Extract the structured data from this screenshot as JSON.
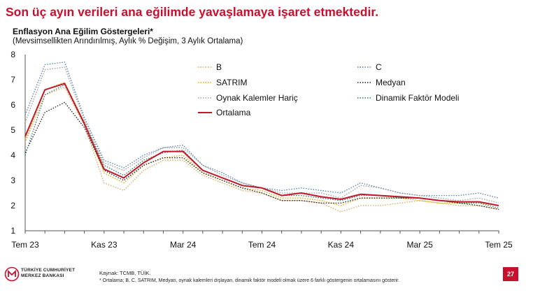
{
  "headline": "Son üç ayın verileri ana eğilimde yavaşlamaya işaret etmektedir.",
  "footer": {
    "bank_name_line1": "TÜRKİYE CUMHURİYET",
    "bank_name_line2": "MERKEZ BANKASI",
    "source": "Kaynak: TCMB, TÜİK.",
    "footnote": "* Ortalama; B, C, SATRIM, Medyan, oynak kalemleri dışlayan, dinamik faktör modeli olmak üzere 6 farklı göstergenin ortalamasını gösterir.",
    "page_number": "27"
  },
  "chart_data": {
    "type": "line",
    "title": "Enflasyon Ana Eğilim Göstergeleri*",
    "subtitle": "(Mevsimsellikten Arındırılmış, Aylık % Değişim, 3 Aylık Ortalama)",
    "x": [
      "Tem 23",
      "Ağu 23",
      "Eyl 23",
      "Eki 23",
      "Kas 23",
      "Ara 23",
      "Oca 24",
      "Şub 24",
      "Mar 24",
      "Nis 24",
      "May 24",
      "Haz 24",
      "Tem 24",
      "Ağu 24",
      "Eyl 24",
      "Eki 24",
      "Kas 24",
      "Ara 24",
      "Oca 25",
      "Şub 25",
      "Mar 25",
      "Nis 25",
      "May 25",
      "Haz 25",
      "Tem 25"
    ],
    "x_tick_labels": [
      "Tem 23",
      "Kas 23",
      "Mar 24",
      "Tem 24",
      "Kas 24",
      "Mar 25",
      "Tem 25"
    ],
    "y_ticks": [
      1,
      2,
      3,
      4,
      5,
      6,
      7,
      8
    ],
    "ylim": [
      1,
      8
    ],
    "legend_position": "top-right, inside plot, two columns",
    "grid": false,
    "series": [
      {
        "name": "B",
        "color": "#d4a85a",
        "style": "dotted",
        "values": [
          4.5,
          6.4,
          6.7,
          5.2,
          2.9,
          2.6,
          3.4,
          3.8,
          3.8,
          3.2,
          2.9,
          2.6,
          2.5,
          2.2,
          2.2,
          2.1,
          1.75,
          2.0,
          2.0,
          2.1,
          2.2,
          2.1,
          2.0,
          2.0,
          1.85
        ]
      },
      {
        "name": "C",
        "color": "#4f7fb2",
        "style": "dotted",
        "values": [
          5.6,
          7.6,
          7.7,
          5.5,
          3.8,
          3.5,
          4.0,
          4.3,
          4.4,
          3.6,
          3.3,
          2.9,
          2.7,
          2.6,
          2.7,
          2.6,
          2.5,
          2.9,
          2.7,
          2.5,
          2.4,
          2.4,
          2.4,
          2.5,
          2.3
        ]
      },
      {
        "name": "SATRIM",
        "color": "#e2a500",
        "style": "dotted",
        "values": [
          4.6,
          6.6,
          6.9,
          5.3,
          3.3,
          2.9,
          3.6,
          3.9,
          4.0,
          3.3,
          3.0,
          2.7,
          2.6,
          2.3,
          2.3,
          2.2,
          2.0,
          2.3,
          2.3,
          2.3,
          2.2,
          2.1,
          2.1,
          2.1,
          2.0
        ]
      },
      {
        "name": "Medyan",
        "color": "#1c1c1c",
        "style": "dotted",
        "values": [
          4.1,
          5.7,
          6.1,
          5.1,
          3.4,
          3.0,
          3.6,
          3.9,
          3.9,
          3.3,
          3.0,
          2.7,
          2.5,
          2.2,
          2.2,
          2.1,
          2.1,
          2.3,
          2.3,
          2.3,
          2.3,
          2.2,
          2.1,
          2.0,
          1.85
        ]
      },
      {
        "name": "Oynak Kalemler Hariç",
        "color": "#9a9a9a",
        "style": "dotted",
        "values": [
          5.3,
          7.4,
          7.5,
          5.4,
          3.7,
          3.4,
          3.9,
          4.3,
          4.3,
          3.6,
          3.2,
          2.9,
          2.7,
          2.5,
          2.5,
          2.5,
          2.3,
          2.8,
          2.7,
          2.5,
          2.4,
          2.3,
          2.2,
          2.3,
          2.1
        ]
      },
      {
        "name": "Dinamik Faktör Modeli",
        "color": "#2e7a5e",
        "style": "dotted",
        "values": [
          4.0,
          6.4,
          6.8,
          5.3,
          3.6,
          3.2,
          3.8,
          4.1,
          4.2,
          3.4,
          3.1,
          2.8,
          2.7,
          2.4,
          2.4,
          2.3,
          2.2,
          2.4,
          2.4,
          2.3,
          2.3,
          2.2,
          2.1,
          2.1,
          1.9
        ]
      },
      {
        "name": "Ortalama",
        "color": "#c0182b",
        "style": "solid",
        "values": [
          4.75,
          6.6,
          6.85,
          5.25,
          3.45,
          3.1,
          3.7,
          4.15,
          4.15,
          3.4,
          3.1,
          2.8,
          2.7,
          2.4,
          2.5,
          2.35,
          2.25,
          2.45,
          2.4,
          2.35,
          2.3,
          2.2,
          2.15,
          2.15,
          2.0
        ]
      }
    ]
  }
}
